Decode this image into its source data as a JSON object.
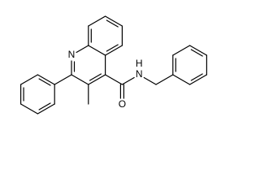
{
  "atoms": [
    {
      "label": "N"
    },
    {
      "label": "O"
    },
    {
      "label": "N"
    },
    {
      "label": "H"
    }
  ]
}
